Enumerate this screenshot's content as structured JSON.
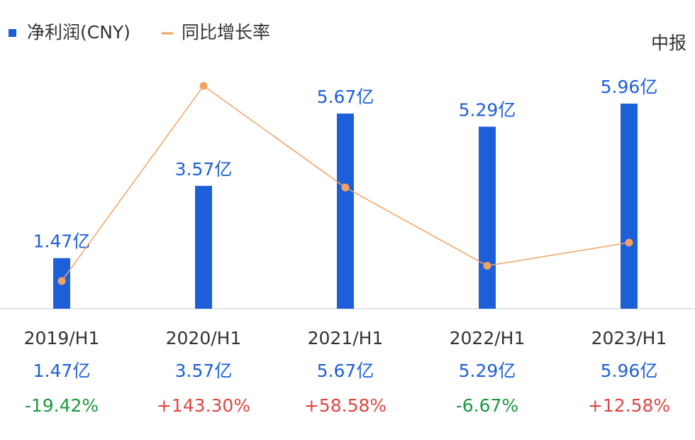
{
  "chart_data": {
    "type": "combo",
    "note": "中报",
    "categories": [
      "2019/H1",
      "2020/H1",
      "2021/H1",
      "2022/H1",
      "2023/H1"
    ],
    "series": [
      {
        "name": "净利润(CNY)",
        "type": "bar",
        "color": "#1d5fd8",
        "values": [
          1.47,
          3.57,
          5.67,
          5.29,
          5.96
        ],
        "value_labels": [
          "1.47亿",
          "3.57亿",
          "5.67亿",
          "5.29亿",
          "5.96亿"
        ]
      },
      {
        "name": "同比增长率",
        "type": "line",
        "color": "#f2a262",
        "values": [
          -19.42,
          143.3,
          58.58,
          -6.67,
          12.58
        ],
        "value_labels": [
          "-19.42%",
          "+143.30%",
          "+58.58%",
          "-6.67%",
          "+12.58%"
        ]
      }
    ]
  }
}
